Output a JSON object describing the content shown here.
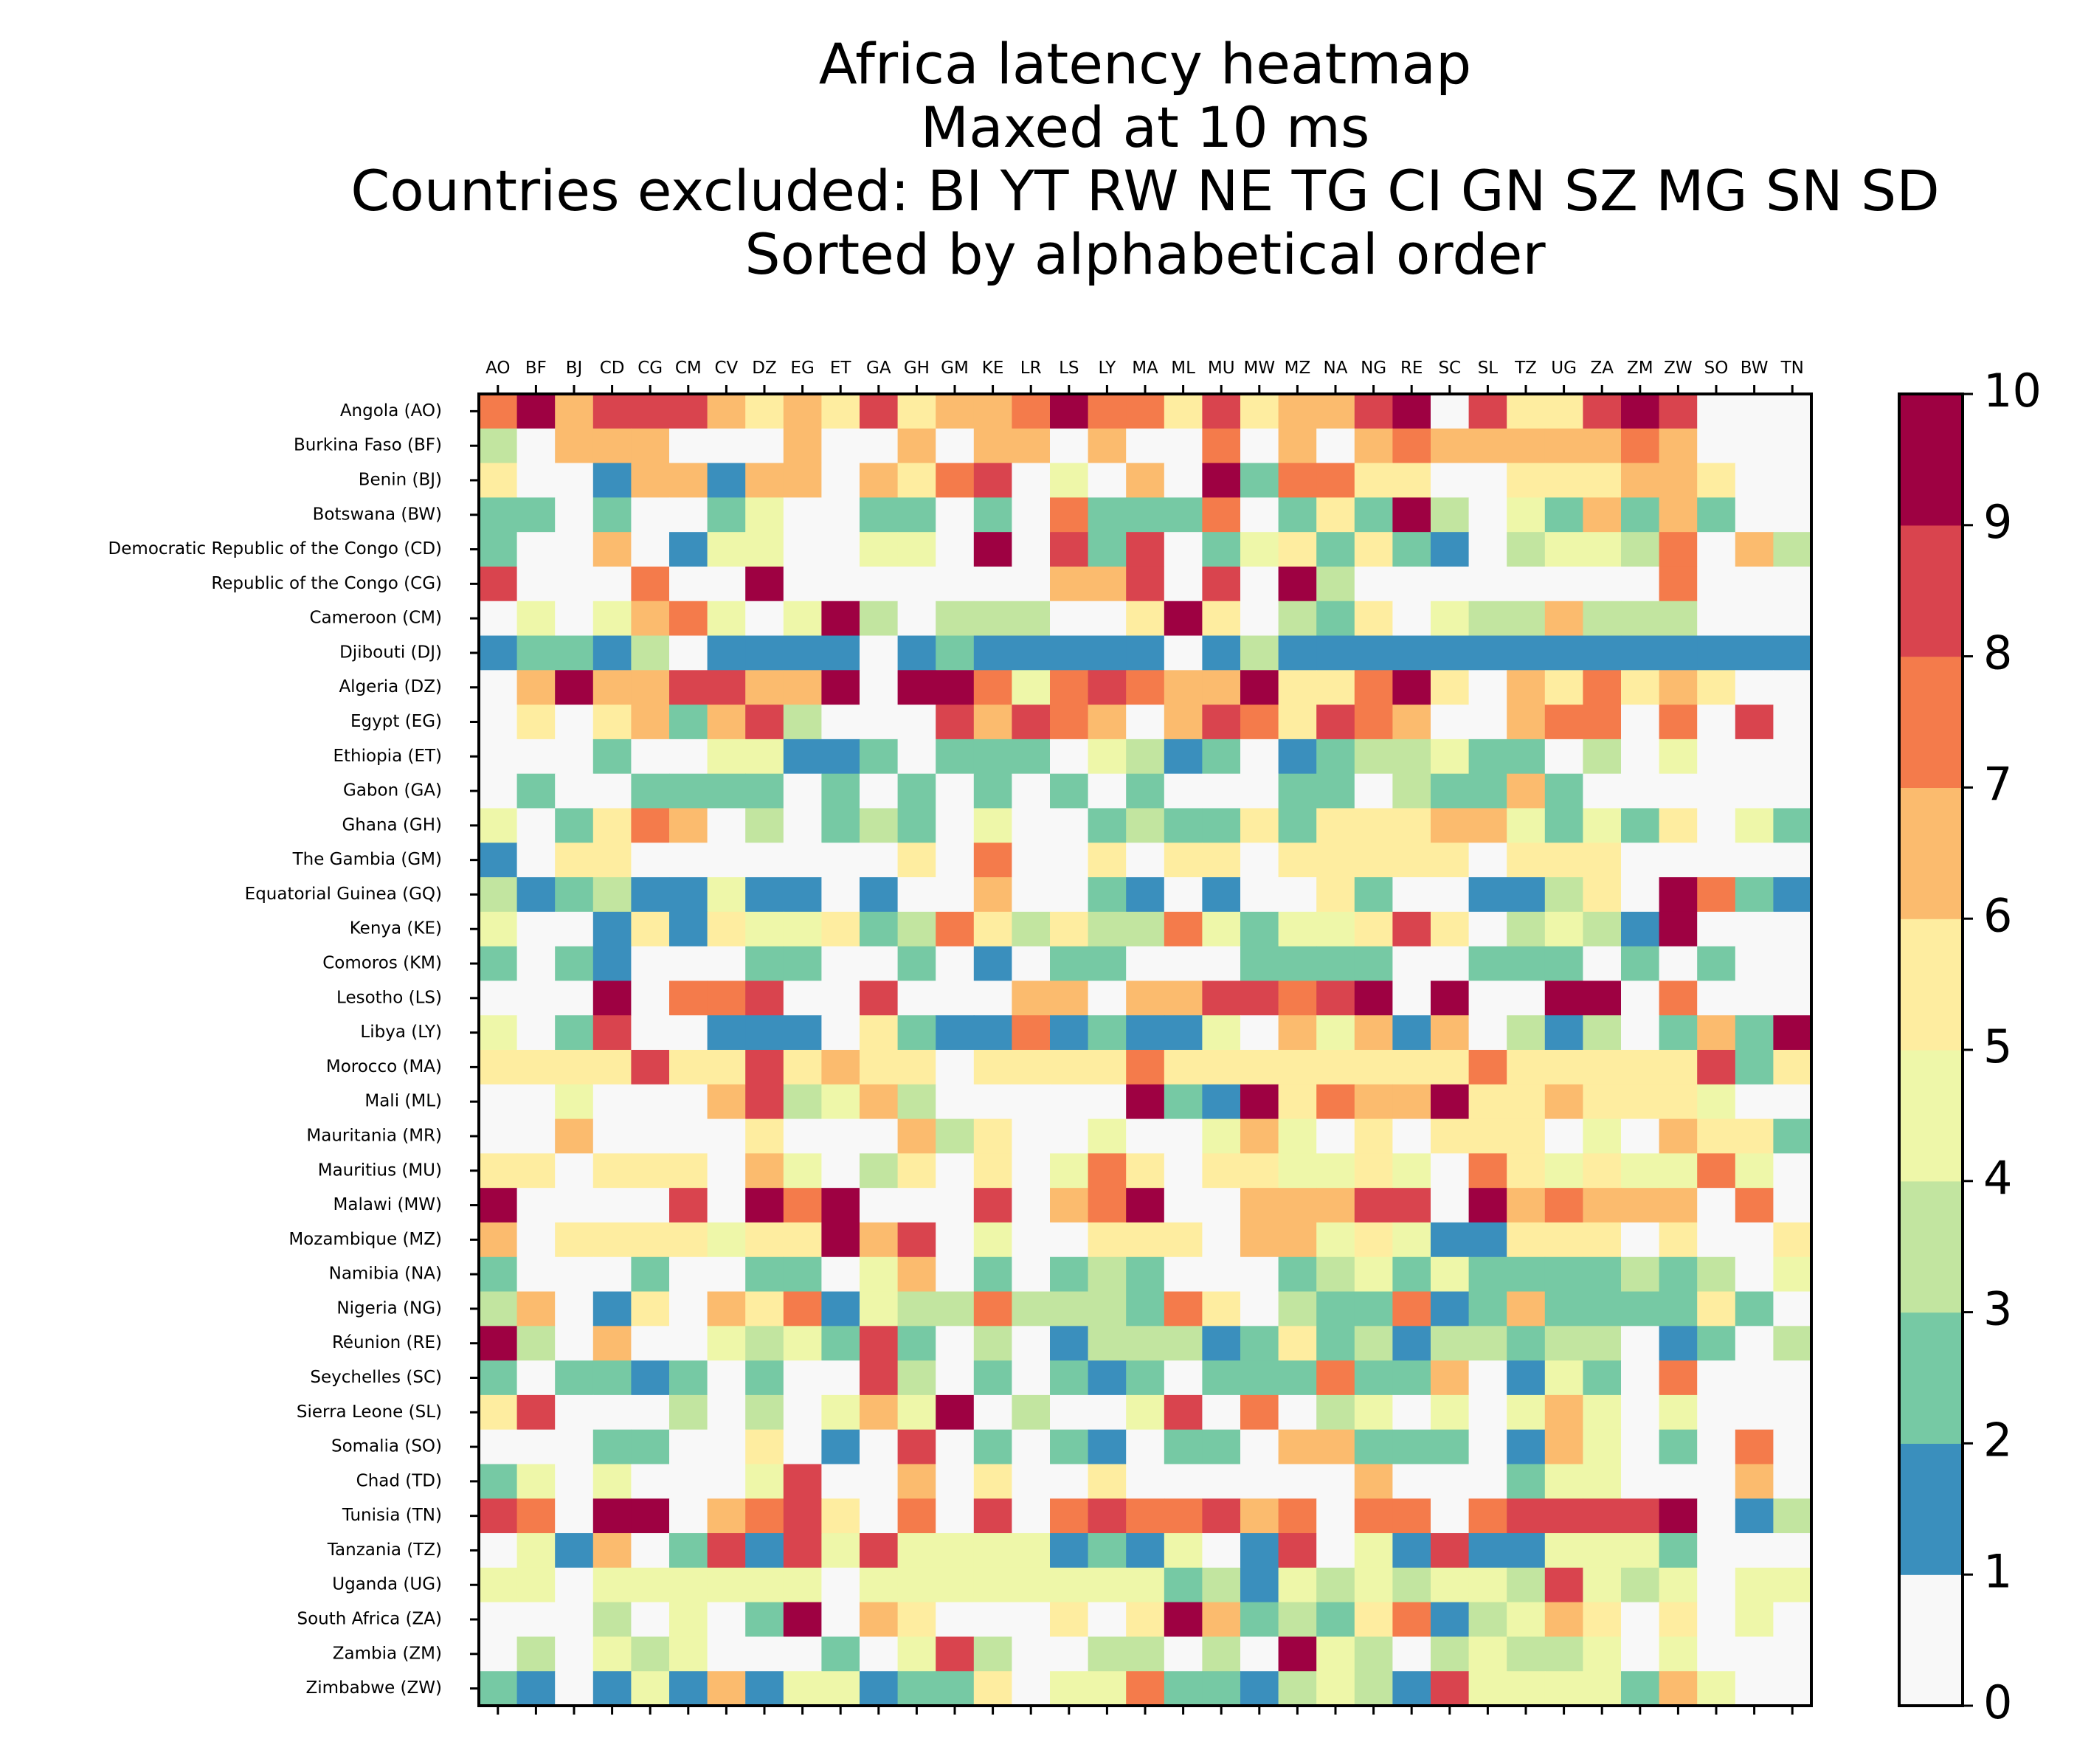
{
  "chart_data": {
    "type": "heatmap",
    "title": "Africa latency heatmap\nMaxed at 10 ms\nCountries excluded: BI YT RW NE TG CI GN SZ MG SN SD\nSorted by alphabetical order",
    "x_labels": [
      "AO",
      "BF",
      "BJ",
      "CD",
      "CG",
      "CM",
      "CV",
      "DZ",
      "EG",
      "ET",
      "GA",
      "GH",
      "GM",
      "KE",
      "LR",
      "LS",
      "LY",
      "MA",
      "ML",
      "MU",
      "MW",
      "MZ",
      "NA",
      "NG",
      "RE",
      "SC",
      "SL",
      "TZ",
      "UG",
      "ZA",
      "ZM",
      "ZW",
      "SO",
      "BW",
      "TN"
    ],
    "y_labels": [
      "Angola (AO)",
      "Burkina Faso (BF)",
      "Benin (BJ)",
      "Botswana (BW)",
      "Democratic Republic of the Congo (CD)",
      "Republic of the Congo (CG)",
      "Cameroon (CM)",
      "Djibouti (DJ)",
      "Algeria (DZ)",
      "Egypt (EG)",
      "Ethiopia (ET)",
      "Gabon (GA)",
      "Ghana (GH)",
      "The Gambia (GM)",
      "Equatorial Guinea (GQ)",
      "Kenya (KE)",
      "Comoros (KM)",
      "Lesotho (LS)",
      "Libya (LY)",
      "Morocco (MA)",
      "Mali (ML)",
      "Mauritania (MR)",
      "Mauritius (MU)",
      "Malawi (MW)",
      "Mozambique (MZ)",
      "Namibia (NA)",
      "Nigeria (NG)",
      "Réunion (RE)",
      "Seychelles (SC)",
      "Sierra Leone (SL)",
      "Somalia (SO)",
      "Chad (TD)",
      "Tunisia (TN)",
      "Tanzania (TZ)",
      "Uganda (UG)",
      "South Africa (ZA)",
      "Zambia (ZM)",
      "Zimbabwe (ZW)"
    ],
    "values": [
      [
        7.5,
        9.5,
        6.5,
        8.5,
        8.5,
        8.5,
        6.5,
        5.5,
        6.5,
        5.5,
        8.5,
        5.5,
        6.5,
        6.5,
        7.5,
        9.5,
        7.5,
        7.5,
        5.5,
        8.5,
        5.5,
        6.5,
        6.5,
        8.5,
        9.5,
        0.5,
        8.5,
        5.5,
        5.5,
        8.5,
        9.5,
        8.5,
        0.5,
        0.5,
        0.5
      ],
      [
        3.5,
        0.5,
        6.5,
        6.5,
        6.5,
        0.5,
        0.5,
        0.5,
        6.5,
        0.5,
        0.5,
        6.5,
        0.5,
        6.5,
        6.5,
        0.5,
        6.5,
        0.5,
        0.5,
        7.5,
        0.5,
        6.5,
        0.5,
        6.5,
        7.5,
        6.5,
        6.5,
        6.5,
        6.5,
        6.5,
        7.5,
        6.5,
        0.5,
        0.5,
        0.5
      ],
      [
        5.5,
        0.5,
        0.5,
        1.5,
        6.5,
        6.5,
        1.5,
        6.5,
        6.5,
        0.5,
        6.5,
        5.5,
        7.5,
        8.5,
        0.5,
        4.5,
        0.5,
        6.5,
        0.5,
        9.5,
        2.5,
        7.5,
        7.5,
        5.5,
        5.5,
        0.5,
        0.5,
        5.5,
        5.5,
        5.5,
        6.5,
        6.5,
        5.5,
        0.5,
        0.5
      ],
      [
        2.5,
        2.5,
        0.5,
        2.5,
        0.5,
        0.5,
        2.5,
        4.5,
        0.5,
        0.5,
        2.5,
        2.5,
        0.5,
        2.5,
        0.5,
        7.5,
        2.5,
        2.5,
        2.5,
        7.5,
        0.5,
        2.5,
        5.5,
        2.5,
        9.5,
        3.5,
        0.5,
        4.5,
        2.5,
        6.5,
        2.5,
        6.5,
        2.5,
        0.5,
        0.5
      ],
      [
        2.5,
        0.5,
        0.5,
        6.5,
        0.5,
        1.5,
        4.5,
        4.5,
        0.5,
        0.5,
        4.5,
        4.5,
        0.5,
        9.5,
        0.5,
        8.5,
        2.5,
        8.5,
        0.5,
        2.5,
        4.5,
        5.5,
        2.5,
        5.5,
        2.5,
        1.5,
        0.5,
        3.5,
        4.5,
        4.5,
        3.5,
        7.5,
        0.5,
        6.5,
        3.5
      ],
      [
        8.5,
        0.5,
        0.5,
        0.5,
        7.5,
        0.5,
        0.5,
        9.5,
        0.5,
        0.5,
        0.5,
        0.5,
        0.5,
        0.5,
        0.5,
        6.5,
        6.5,
        8.5,
        0.5,
        8.5,
        0.5,
        9.5,
        3.5,
        0.5,
        0.5,
        0.5,
        0.5,
        0.5,
        0.5,
        0.5,
        0.5,
        7.5,
        0.5,
        0.5,
        0.5
      ],
      [
        0.5,
        4.5,
        0.5,
        4.5,
        6.5,
        7.5,
        4.5,
        0.5,
        4.5,
        9.5,
        3.5,
        0.5,
        3.5,
        3.5,
        3.5,
        0.5,
        0.5,
        5.5,
        9.5,
        5.5,
        0.5,
        3.5,
        2.5,
        5.5,
        0.5,
        4.5,
        3.5,
        3.5,
        6.5,
        3.5,
        3.5,
        3.5,
        0.5,
        0.5,
        0.5
      ],
      [
        1.5,
        2.5,
        2.5,
        1.5,
        3.5,
        0.5,
        1.5,
        1.5,
        1.5,
        1.5,
        0.5,
        1.5,
        2.5,
        1.5,
        1.5,
        1.5,
        1.5,
        1.5,
        0.5,
        1.5,
        3.5,
        1.5,
        1.5,
        1.5,
        1.5,
        1.5,
        1.5,
        1.5,
        1.5,
        1.5,
        1.5,
        1.5,
        1.5,
        1.5,
        1.5
      ],
      [
        0.5,
        6.5,
        9.5,
        6.5,
        6.5,
        8.5,
        8.5,
        6.5,
        6.5,
        9.5,
        0.5,
        9.5,
        9.5,
        7.5,
        4.5,
        7.5,
        8.5,
        7.5,
        6.5,
        6.5,
        9.5,
        5.5,
        5.5,
        7.5,
        9.5,
        5.5,
        0.5,
        6.5,
        5.5,
        7.5,
        5.5,
        6.5,
        5.5,
        0.5,
        0.5
      ],
      [
        0.5,
        5.5,
        0.5,
        5.5,
        6.5,
        2.5,
        6.5,
        8.5,
        3.5,
        0.5,
        0.5,
        0.5,
        8.5,
        6.5,
        8.5,
        7.5,
        6.5,
        0.5,
        6.5,
        8.5,
        7.5,
        5.5,
        8.5,
        7.5,
        6.5,
        0.5,
        0.5,
        6.5,
        7.5,
        7.5,
        0.5,
        7.5,
        0.5,
        8.5,
        0.5
      ],
      [
        0.5,
        0.5,
        0.5,
        2.5,
        0.5,
        0.5,
        4.5,
        4.5,
        1.5,
        1.5,
        2.5,
        0.5,
        2.5,
        2.5,
        2.5,
        0.5,
        4.5,
        3.5,
        1.5,
        2.5,
        0.5,
        1.5,
        2.5,
        3.5,
        3.5,
        4.5,
        2.5,
        2.5,
        0.5,
        3.5,
        0.5,
        4.5,
        0.5,
        0.5,
        0.5
      ],
      [
        0.5,
        2.5,
        0.5,
        0.5,
        2.5,
        2.5,
        2.5,
        2.5,
        0.5,
        2.5,
        0.5,
        2.5,
        0.5,
        2.5,
        0.5,
        2.5,
        0.5,
        2.5,
        0.5,
        0.5,
        0.5,
        2.5,
        2.5,
        0.5,
        3.5,
        2.5,
        2.5,
        6.5,
        2.5,
        0.5,
        0.5,
        0.5,
        0.5,
        0.5,
        0.5
      ],
      [
        4.5,
        0.5,
        2.5,
        5.5,
        7.5,
        6.5,
        0.5,
        3.5,
        0.5,
        2.5,
        3.5,
        2.5,
        0.5,
        4.5,
        0.5,
        0.5,
        2.5,
        3.5,
        2.5,
        2.5,
        5.5,
        2.5,
        5.5,
        5.5,
        5.5,
        6.5,
        6.5,
        4.5,
        2.5,
        4.5,
        2.5,
        5.5,
        0.5,
        4.5,
        2.5
      ],
      [
        1.5,
        0.5,
        5.5,
        5.5,
        0.5,
        0.5,
        0.5,
        0.5,
        0.5,
        0.5,
        0.5,
        5.5,
        0.5,
        7.5,
        0.5,
        0.5,
        5.5,
        0.5,
        5.5,
        5.5,
        0.5,
        5.5,
        5.5,
        5.5,
        5.5,
        5.5,
        0.5,
        5.5,
        5.5,
        5.5,
        0.5,
        0.5,
        0.5,
        0.5,
        0.5
      ],
      [
        3.5,
        1.5,
        2.5,
        3.5,
        1.5,
        1.5,
        4.5,
        1.5,
        1.5,
        0.5,
        1.5,
        0.5,
        0.5,
        6.5,
        0.5,
        0.5,
        2.5,
        1.5,
        0.5,
        1.5,
        0.5,
        0.5,
        5.5,
        2.5,
        0.5,
        0.5,
        1.5,
        1.5,
        3.5,
        5.5,
        0.5,
        9.5,
        7.5,
        2.5,
        1.5
      ],
      [
        4.5,
        0.5,
        0.5,
        1.5,
        5.5,
        1.5,
        5.5,
        4.5,
        4.5,
        5.5,
        2.5,
        3.5,
        7.5,
        5.5,
        3.5,
        5.5,
        3.5,
        3.5,
        7.5,
        4.5,
        2.5,
        4.5,
        4.5,
        5.5,
        8.5,
        5.5,
        0.5,
        3.5,
        4.5,
        3.5,
        1.5,
        9.5,
        0.5,
        0.5,
        0.5
      ],
      [
        2.5,
        0.5,
        2.5,
        1.5,
        0.5,
        0.5,
        0.5,
        2.5,
        2.5,
        0.5,
        0.5,
        2.5,
        0.5,
        1.5,
        0.5,
        2.5,
        2.5,
        0.5,
        0.5,
        0.5,
        2.5,
        2.5,
        2.5,
        2.5,
        0.5,
        0.5,
        2.5,
        2.5,
        2.5,
        0.5,
        2.5,
        0.5,
        2.5,
        0.5,
        0.5
      ],
      [
        0.5,
        0.5,
        0.5,
        9.5,
        0.5,
        7.5,
        7.5,
        8.5,
        0.5,
        0.5,
        8.5,
        0.5,
        0.5,
        0.5,
        6.5,
        6.5,
        0.5,
        6.5,
        6.5,
        8.5,
        8.5,
        7.5,
        8.5,
        9.5,
        0.5,
        9.5,
        0.5,
        0.5,
        9.5,
        9.5,
        0.5,
        7.5,
        0.5,
        0.5,
        0.5
      ],
      [
        4.5,
        0.5,
        2.5,
        8.5,
        0.5,
        0.5,
        1.5,
        1.5,
        1.5,
        0.5,
        5.5,
        2.5,
        1.5,
        1.5,
        7.5,
        1.5,
        2.5,
        1.5,
        1.5,
        4.5,
        0.5,
        6.5,
        4.5,
        6.5,
        1.5,
        6.5,
        0.5,
        3.5,
        1.5,
        3.5,
        0.5,
        2.5,
        6.5,
        2.5,
        9.5
      ],
      [
        5.5,
        5.5,
        5.5,
        5.5,
        8.5,
        5.5,
        5.5,
        8.5,
        5.5,
        6.5,
        5.5,
        5.5,
        0.5,
        5.5,
        5.5,
        5.5,
        5.5,
        7.5,
        5.5,
        5.5,
        5.5,
        5.5,
        5.5,
        5.5,
        5.5,
        5.5,
        7.5,
        5.5,
        5.5,
        5.5,
        5.5,
        5.5,
        8.5,
        2.5,
        5.5
      ],
      [
        0.5,
        0.5,
        4.5,
        0.5,
        0.5,
        0.5,
        6.5,
        8.5,
        3.5,
        4.5,
        6.5,
        3.5,
        0.5,
        0.5,
        0.5,
        0.5,
        0.5,
        9.5,
        2.5,
        1.5,
        9.5,
        5.5,
        7.5,
        6.5,
        6.5,
        9.5,
        5.5,
        5.5,
        6.5,
        5.5,
        5.5,
        5.5,
        4.5,
        0.5,
        0.5
      ],
      [
        0.5,
        0.5,
        6.5,
        0.5,
        0.5,
        0.5,
        0.5,
        5.5,
        0.5,
        0.5,
        0.5,
        6.5,
        3.5,
        5.5,
        0.5,
        0.5,
        4.5,
        0.5,
        0.5,
        4.5,
        6.5,
        4.5,
        0.5,
        5.5,
        0.5,
        5.5,
        5.5,
        5.5,
        0.5,
        4.5,
        0.5,
        6.5,
        5.5,
        5.5,
        2.5
      ],
      [
        5.5,
        5.5,
        0.5,
        5.5,
        5.5,
        5.5,
        0.5,
        6.5,
        4.5,
        0.5,
        3.5,
        5.5,
        0.5,
        5.5,
        0.5,
        4.5,
        7.5,
        5.5,
        0.5,
        5.5,
        5.5,
        4.5,
        4.5,
        5.5,
        4.5,
        0.5,
        7.5,
        5.5,
        4.5,
        5.5,
        4.5,
        4.5,
        7.5,
        4.5,
        0.5
      ],
      [
        9.5,
        0.5,
        0.5,
        0.5,
        0.5,
        8.5,
        0.5,
        9.5,
        7.5,
        9.5,
        0.5,
        0.5,
        0.5,
        8.5,
        0.5,
        6.5,
        7.5,
        9.5,
        0.5,
        0.5,
        6.5,
        6.5,
        6.5,
        8.5,
        8.5,
        0.5,
        9.5,
        6.5,
        7.5,
        6.5,
        6.5,
        6.5,
        0.5,
        7.5,
        0.5
      ],
      [
        6.5,
        0.5,
        5.5,
        5.5,
        5.5,
        5.5,
        4.5,
        5.5,
        5.5,
        9.5,
        6.5,
        8.5,
        0.5,
        4.5,
        0.5,
        0.5,
        5.5,
        5.5,
        5.5,
        0.5,
        6.5,
        6.5,
        4.5,
        5.5,
        4.5,
        1.5,
        1.5,
        5.5,
        5.5,
        5.5,
        0.5,
        5.5,
        0.5,
        0.5,
        5.5
      ],
      [
        2.5,
        0.5,
        0.5,
        0.5,
        2.5,
        0.5,
        0.5,
        2.5,
        2.5,
        0.5,
        4.5,
        6.5,
        0.5,
        2.5,
        0.5,
        2.5,
        3.5,
        2.5,
        0.5,
        0.5,
        0.5,
        2.5,
        3.5,
        4.5,
        2.5,
        4.5,
        2.5,
        2.5,
        2.5,
        2.5,
        3.5,
        2.5,
        3.5,
        0.5,
        4.5
      ],
      [
        3.5,
        6.5,
        0.5,
        1.5,
        5.5,
        0.5,
        6.5,
        5.5,
        7.5,
        1.5,
        4.5,
        3.5,
        3.5,
        7.5,
        3.5,
        3.5,
        3.5,
        2.5,
        7.5,
        5.5,
        0.5,
        3.5,
        2.5,
        2.5,
        7.5,
        1.5,
        2.5,
        6.5,
        2.5,
        2.5,
        2.5,
        2.5,
        5.5,
        2.5,
        0.5
      ],
      [
        9.5,
        3.5,
        0.5,
        6.5,
        0.5,
        0.5,
        4.5,
        3.5,
        4.5,
        2.5,
        8.5,
        2.5,
        0.5,
        3.5,
        0.5,
        1.5,
        3.5,
        3.5,
        3.5,
        1.5,
        2.5,
        5.5,
        2.5,
        3.5,
        1.5,
        3.5,
        3.5,
        2.5,
        3.5,
        3.5,
        0.5,
        1.5,
        2.5,
        0.5,
        3.5
      ],
      [
        2.5,
        0.5,
        2.5,
        2.5,
        1.5,
        2.5,
        0.5,
        2.5,
        0.5,
        0.5,
        8.5,
        3.5,
        0.5,
        2.5,
        0.5,
        2.5,
        1.5,
        2.5,
        0.5,
        2.5,
        2.5,
        2.5,
        7.5,
        2.5,
        2.5,
        6.5,
        0.5,
        1.5,
        4.5,
        2.5,
        0.5,
        7.5,
        0.5,
        0.5,
        0.5
      ],
      [
        5.5,
        8.5,
        0.5,
        0.5,
        0.5,
        3.5,
        0.5,
        3.5,
        0.5,
        4.5,
        6.5,
        4.5,
        9.5,
        0.5,
        3.5,
        0.5,
        0.5,
        4.5,
        8.5,
        0.5,
        7.5,
        0.5,
        3.5,
        4.5,
        0.5,
        4.5,
        0.5,
        4.5,
        6.5,
        4.5,
        0.5,
        4.5,
        0.5,
        0.5,
        0.5
      ],
      [
        0.5,
        0.5,
        0.5,
        2.5,
        2.5,
        0.5,
        0.5,
        5.5,
        0.5,
        1.5,
        0.5,
        8.5,
        0.5,
        2.5,
        0.5,
        2.5,
        1.5,
        0.5,
        2.5,
        2.5,
        0.5,
        6.5,
        6.5,
        2.5,
        2.5,
        2.5,
        0.5,
        1.5,
        6.5,
        4.5,
        0.5,
        2.5,
        0.5,
        7.5,
        0.5
      ],
      [
        2.5,
        4.5,
        0.5,
        4.5,
        0.5,
        0.5,
        0.5,
        4.5,
        8.5,
        0.5,
        0.5,
        6.5,
        0.5,
        5.5,
        0.5,
        0.5,
        5.5,
        0.5,
        0.5,
        0.5,
        0.5,
        0.5,
        0.5,
        6.5,
        0.5,
        0.5,
        0.5,
        2.5,
        4.5,
        4.5,
        0.5,
        0.5,
        0.5,
        6.5,
        0.5
      ],
      [
        8.5,
        7.5,
        0.5,
        9.5,
        9.5,
        0.5,
        6.5,
        7.5,
        8.5,
        5.5,
        0.5,
        7.5,
        0.5,
        8.5,
        0.5,
        7.5,
        8.5,
        7.5,
        7.5,
        8.5,
        6.5,
        7.5,
        0.5,
        7.5,
        7.5,
        0.5,
        7.5,
        8.5,
        8.5,
        8.5,
        8.5,
        9.5,
        0.5,
        1.5,
        3.5
      ],
      [
        0.5,
        4.5,
        1.5,
        6.5,
        0.5,
        2.5,
        8.5,
        1.5,
        8.5,
        4.5,
        8.5,
        4.5,
        4.5,
        4.5,
        4.5,
        1.5,
        2.5,
        1.5,
        4.5,
        0.5,
        1.5,
        8.5,
        0.5,
        4.5,
        1.5,
        8.5,
        1.5,
        1.5,
        4.5,
        4.5,
        4.5,
        2.5,
        0.5,
        0.5,
        0.5
      ],
      [
        4.5,
        4.5,
        0.5,
        4.5,
        4.5,
        4.5,
        4.5,
        4.5,
        4.5,
        0.5,
        4.5,
        4.5,
        4.5,
        4.5,
        4.5,
        4.5,
        4.5,
        4.5,
        2.5,
        3.5,
        1.5,
        4.5,
        3.5,
        4.5,
        3.5,
        4.5,
        4.5,
        3.5,
        8.5,
        4.5,
        3.5,
        4.5,
        0.5,
        4.5,
        4.5
      ],
      [
        0.5,
        0.5,
        0.5,
        3.5,
        0.5,
        4.5,
        0.5,
        2.5,
        9.5,
        0.5,
        6.5,
        5.5,
        0.5,
        0.5,
        0.5,
        5.5,
        0.5,
        5.5,
        9.5,
        6.5,
        2.5,
        3.5,
        2.5,
        5.5,
        7.5,
        1.5,
        3.5,
        4.5,
        6.5,
        5.5,
        0.5,
        5.5,
        0.5,
        4.5,
        0.5
      ],
      [
        0.5,
        3.5,
        0.5,
        4.5,
        3.5,
        4.5,
        0.5,
        0.5,
        0.5,
        2.5,
        0.5,
        4.5,
        8.5,
        3.5,
        0.5,
        0.5,
        3.5,
        3.5,
        0.5,
        3.5,
        0.5,
        9.5,
        4.5,
        3.5,
        0.5,
        3.5,
        4.5,
        3.5,
        3.5,
        4.5,
        0.5,
        4.5,
        0.5,
        0.5,
        0.5
      ],
      [
        2.5,
        1.5,
        0.5,
        1.5,
        4.5,
        1.5,
        6.5,
        1.5,
        4.5,
        4.5,
        1.5,
        2.5,
        2.5,
        5.5,
        0.5,
        4.5,
        4.5,
        7.5,
        2.5,
        2.5,
        1.5,
        3.5,
        4.5,
        3.5,
        1.5,
        8.5,
        4.5,
        4.5,
        4.5,
        4.5,
        2.5,
        6.5,
        4.5,
        0.5,
        0.5
      ]
    ],
    "vmin": 0,
    "vmax": 10,
    "colorbar_ticks": [
      "0",
      "1",
      "2",
      "3",
      "4",
      "5",
      "6",
      "7",
      "8",
      "9",
      "10"
    ],
    "colormap": [
      "#f8f8f8",
      "#3a8fbd",
      "#76c9a4",
      "#c2e5a0",
      "#eef7a9",
      "#feeda0",
      "#fbbb6e",
      "#f47b4b",
      "#d9444e",
      "#9e0142"
    ]
  }
}
